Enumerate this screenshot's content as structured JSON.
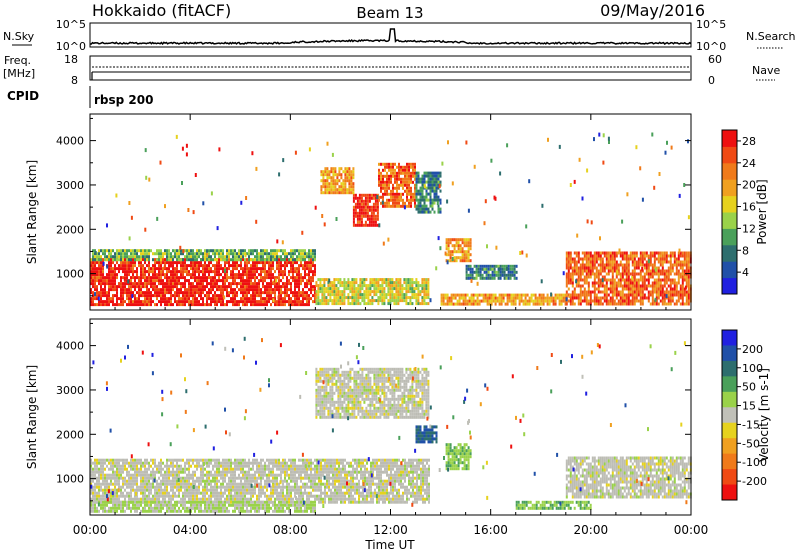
{
  "header": {
    "station": "Hokkaido (fitACF)",
    "beam": "Beam 13",
    "date": "09/May/2016"
  },
  "strips": {
    "nsky_label": "N.Sky",
    "nsearch_label": "N.Search",
    "freq_label_1": "Freq.",
    "freq_label_2": "[MHz]",
    "nave_label": "Nave",
    "cpid_label": "CPID",
    "cpid_value": "rbsp 200",
    "nsky_ticks": [
      "10^5",
      "10^0"
    ],
    "nsearch_ticks": [
      "10^5",
      "10^0"
    ],
    "freq_ticks": [
      "18",
      "8"
    ],
    "nave_ticks": [
      "60",
      "0"
    ]
  },
  "colors": {
    "power_scale": [
      "#2020e0",
      "#2050a8",
      "#2d6e6e",
      "#4aa05a",
      "#9ad24a",
      "#e6d21e",
      "#f0a020",
      "#f07a1a",
      "#f04a14",
      "#ee1010"
    ],
    "velocity_scale": [
      "#ee1010",
      "#f04a14",
      "#f07a1a",
      "#f0a020",
      "#e6d21e",
      "#c0c0b8",
      "#9ad24a",
      "#4aa05a",
      "#2d6e6e",
      "#2050a8",
      "#2020e0"
    ],
    "ground_scatter": "#bcbcb4"
  },
  "chart_data": [
    {
      "type": "heatmap",
      "panel": "power",
      "ylabel": "Slant Range [km]",
      "xlabel": "Time UT",
      "x_ticks": [
        "00:00",
        "04:00",
        "08:00",
        "12:00",
        "16:00",
        "20:00",
        "00:00"
      ],
      "xlim_hours": [
        0,
        24
      ],
      "ylim_km": [
        180,
        4600
      ],
      "y_ticks": [
        1000,
        2000,
        3000,
        4000
      ],
      "colorbar_label": "Power [dB]",
      "colorbar_ticks": [
        4,
        8,
        12,
        16,
        20,
        24,
        28
      ],
      "colorbar_range": [
        0,
        30
      ],
      "regions": [
        {
          "t0": 0.0,
          "t1": 9.0,
          "r0": 300,
          "r1": 1350,
          "level": 28
        },
        {
          "t0": 9.0,
          "t1": 13.5,
          "r0": 300,
          "r1": 900,
          "level": 16
        },
        {
          "t0": 10.5,
          "t1": 11.5,
          "r0": 2100,
          "r1": 2800,
          "level": 28
        },
        {
          "t0": 11.5,
          "t1": 13.0,
          "r0": 2500,
          "r1": 3500,
          "level": 24
        },
        {
          "t0": 9.2,
          "t1": 10.5,
          "r0": 2800,
          "r1": 3400,
          "level": 20
        },
        {
          "t0": 13.0,
          "t1": 14.0,
          "r0": 2400,
          "r1": 3300,
          "level": 8
        },
        {
          "t0": 14.2,
          "t1": 15.2,
          "r0": 1300,
          "r1": 1800,
          "level": 20
        },
        {
          "t0": 15.0,
          "t1": 17.0,
          "r0": 900,
          "r1": 1200,
          "level": 8
        },
        {
          "t0": 14.0,
          "t1": 19.0,
          "r0": 300,
          "r1": 550,
          "level": 20
        },
        {
          "t0": 19.0,
          "t1": 24.0,
          "r0": 300,
          "r1": 1500,
          "level": 24
        },
        {
          "t0": 0.0,
          "t1": 9.0,
          "r0": 1300,
          "r1": 1550,
          "level": 12
        }
      ]
    },
    {
      "type": "heatmap",
      "panel": "velocity",
      "ylabel": "Slant Range [km]",
      "xlabel": "Time UT",
      "x_ticks": [
        "00:00",
        "04:00",
        "08:00",
        "12:00",
        "16:00",
        "20:00",
        "00:00"
      ],
      "xlim_hours": [
        0,
        24
      ],
      "ylim_km": [
        180,
        4600
      ],
      "y_ticks": [
        1000,
        2000,
        3000,
        4000
      ],
      "colorbar_label": "Velocity [m s-1]",
      "colorbar_ticks": [
        200,
        100,
        50,
        15,
        -15,
        -50,
        -100,
        -200
      ],
      "colorbar_range": [
        -250,
        250
      ],
      "regions": [
        {
          "t0": 0.0,
          "t1": 13.5,
          "r0": 500,
          "r1": 1450,
          "velocity": 0
        },
        {
          "t0": 9.0,
          "t1": 13.5,
          "r0": 2400,
          "r1": 3500,
          "velocity": 0
        },
        {
          "t0": 13.0,
          "t1": 13.8,
          "r0": 1800,
          "r1": 2200,
          "velocity": 150
        },
        {
          "t0": 14.2,
          "t1": 15.2,
          "r0": 1200,
          "r1": 1800,
          "velocity": 60
        },
        {
          "t0": 19.0,
          "t1": 24.0,
          "r0": 600,
          "r1": 1500,
          "velocity": 0
        },
        {
          "t0": 0.0,
          "t1": 9.0,
          "r0": 250,
          "r1": 500,
          "velocity": 30
        },
        {
          "t0": 17.0,
          "t1": 20.0,
          "r0": 300,
          "r1": 500,
          "velocity": 60
        }
      ]
    }
  ]
}
